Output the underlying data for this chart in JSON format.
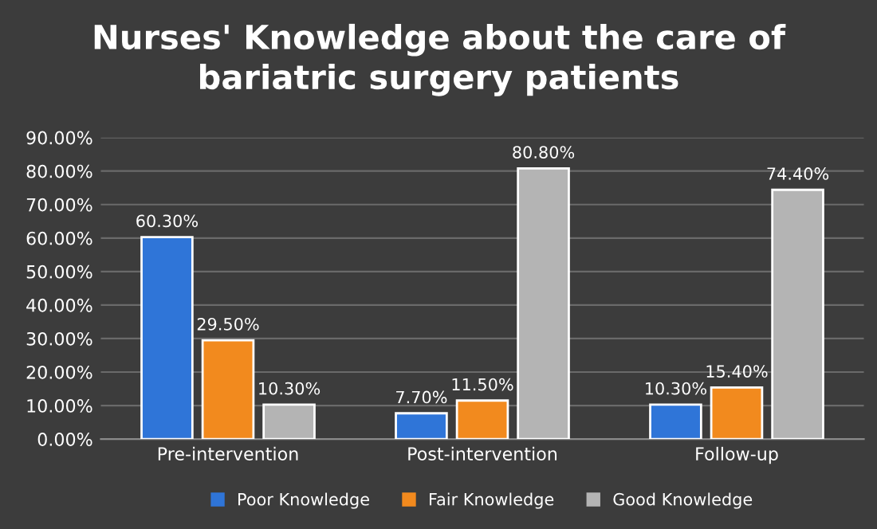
{
  "chart_data": {
    "type": "bar",
    "title": "Nurses' Knowledge about the care of\nbariatric surgery patients",
    "categories": [
      "Pre-intervention",
      "Post-intervention",
      "Follow-up"
    ],
    "series": [
      {
        "name": "Poor Knowledge",
        "color": "#2f75d8",
        "values": [
          60.3,
          7.7,
          10.3
        ],
        "value_labels": [
          "60.30%",
          "7.70%",
          "10.30%"
        ]
      },
      {
        "name": "Fair Knowledge",
        "color": "#f28a1e",
        "values": [
          29.5,
          11.5,
          15.4
        ],
        "value_labels": [
          "29.50%",
          "11.50%",
          "15.40%"
        ]
      },
      {
        "name": "Good Knowledge",
        "color": "#b4b4b4",
        "values": [
          10.3,
          80.8,
          74.4
        ],
        "value_labels": [
          "10.30%",
          "80.80%",
          "74.40%"
        ]
      }
    ],
    "ylim": [
      0,
      90
    ],
    "yticks": [
      {
        "value": 0,
        "label": "0.00%"
      },
      {
        "value": 10,
        "label": "10.00%"
      },
      {
        "value": 20,
        "label": "20.00%"
      },
      {
        "value": 30,
        "label": "30.00%"
      },
      {
        "value": 40,
        "label": "40.00%"
      },
      {
        "value": 50,
        "label": "50.00%"
      },
      {
        "value": 60,
        "label": "60.00%"
      },
      {
        "value": 70,
        "label": "70.00%"
      },
      {
        "value": 80,
        "label": "80.00%"
      },
      {
        "value": 90,
        "label": "90.00%"
      }
    ],
    "grid": "y",
    "legend": "bottom"
  }
}
